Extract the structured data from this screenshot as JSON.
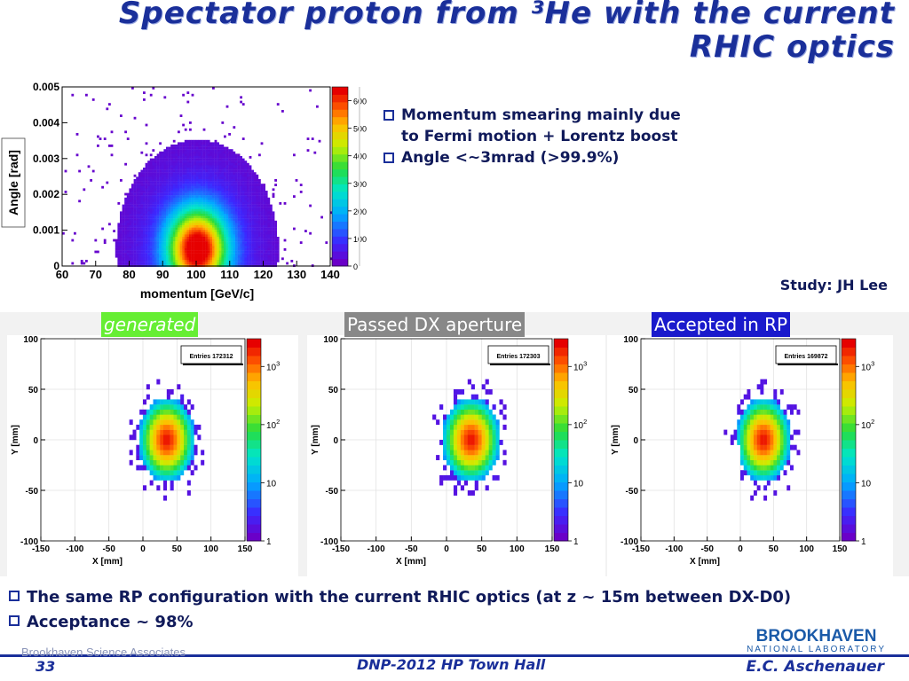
{
  "slide": {
    "title_line1": "Spectator proton from ³He with the current",
    "title_line2": "RHIC optics"
  },
  "bullets_top": [
    {
      "line1": "Momentum smearing mainly due",
      "line2": "to Fermi motion + Lorentz boost"
    },
    {
      "line1": "Angle <~3mrad (>99.9%)"
    }
  ],
  "study": "Study: JH Lee",
  "panels": [
    {
      "label": "generated",
      "entries": "Entries  172312"
    },
    {
      "label": "Passed DX aperture",
      "entries": "Entries  172303"
    },
    {
      "label": "Accepted in RP",
      "entries": "Entries  169872"
    }
  ],
  "bullets_bottom": [
    "The same RP configuration with the current RHIC optics (at z ~ 15m between DX-D0)",
    "Acceptance ~ 98%"
  ],
  "footer": {
    "org": "Brookhaven Science Associates",
    "page_number": "33",
    "center": "DNP-2012 HP Town Hall",
    "author": "E.C. Aschenauer",
    "logo_main": "BROOKHAVEN",
    "logo_sub": "NATIONAL LABORATORY"
  },
  "chart_data": [
    {
      "type": "heatmap",
      "xlabel": "momentum [GeV/c]",
      "ylabel": "Angle [rad]",
      "xlim": [
        60,
        140
      ],
      "ylim": [
        0,
        0.005
      ],
      "x_ticks": [
        60,
        70,
        80,
        90,
        100,
        110,
        120,
        130,
        140
      ],
      "y_ticks": [
        0,
        0.001,
        0.002,
        0.003,
        0.004,
        0.005
      ],
      "y_tick_labels": [
        "0",
        "0.001",
        "0.002",
        "0.003",
        "0.004",
        "0.005"
      ],
      "colorbar": {
        "min": 0,
        "max": 650,
        "ticks": [
          0,
          100,
          200,
          300,
          400,
          500,
          600
        ]
      },
      "peak": {
        "x": 100,
        "y": 0.0005,
        "value": 650
      },
      "spread": {
        "x_sigma": 9,
        "y_extent": 0.0025
      }
    },
    {
      "type": "heatmap",
      "xlabel": "X [mm]",
      "ylabel": "Y [mm]",
      "xlim": [
        -150,
        150
      ],
      "ylim": [
        -100,
        100
      ],
      "x_ticks": [
        -150,
        -100,
        -50,
        0,
        50,
        100,
        150
      ],
      "y_ticks": [
        -100,
        -50,
        0,
        50,
        100
      ],
      "colorbar": {
        "scale": "log",
        "min": 1,
        "max": 3000,
        "ticks": [
          1,
          10,
          100,
          1000
        ],
        "tick_labels": [
          "1",
          "10",
          "10^2",
          "10^3"
        ]
      },
      "center": {
        "x": 35,
        "y": 0
      },
      "radius": 50
    },
    {
      "type": "heatmap",
      "xlabel": "X [mm]",
      "ylabel": "Y [mm]",
      "xlim": [
        -150,
        150
      ],
      "ylim": [
        -100,
        100
      ],
      "x_ticks": [
        -150,
        -100,
        -50,
        0,
        50,
        100,
        150
      ],
      "y_ticks": [
        -100,
        -50,
        0,
        50,
        100
      ],
      "colorbar": {
        "scale": "log",
        "min": 1,
        "max": 3000,
        "ticks": [
          1,
          10,
          100,
          1000
        ],
        "tick_labels": [
          "1",
          "10",
          "10^2",
          "10^3"
        ]
      },
      "center": {
        "x": 35,
        "y": 0
      },
      "radius": 50
    },
    {
      "type": "heatmap",
      "xlabel": "X [mm]",
      "ylabel": "Y [mm]",
      "xlim": [
        -150,
        150
      ],
      "ylim": [
        -100,
        100
      ],
      "x_ticks": [
        -150,
        -100,
        -50,
        0,
        50,
        100,
        150
      ],
      "y_ticks": [
        -100,
        -50,
        0,
        50,
        100
      ],
      "colorbar": {
        "scale": "log",
        "min": 1,
        "max": 3000,
        "ticks": [
          1,
          10,
          100,
          1000
        ],
        "tick_labels": [
          "1",
          "10",
          "10^2",
          "10^3"
        ]
      },
      "center": {
        "x": 35,
        "y": 0
      },
      "radius": 50,
      "cut": "x < 0 and y < -5"
    }
  ]
}
